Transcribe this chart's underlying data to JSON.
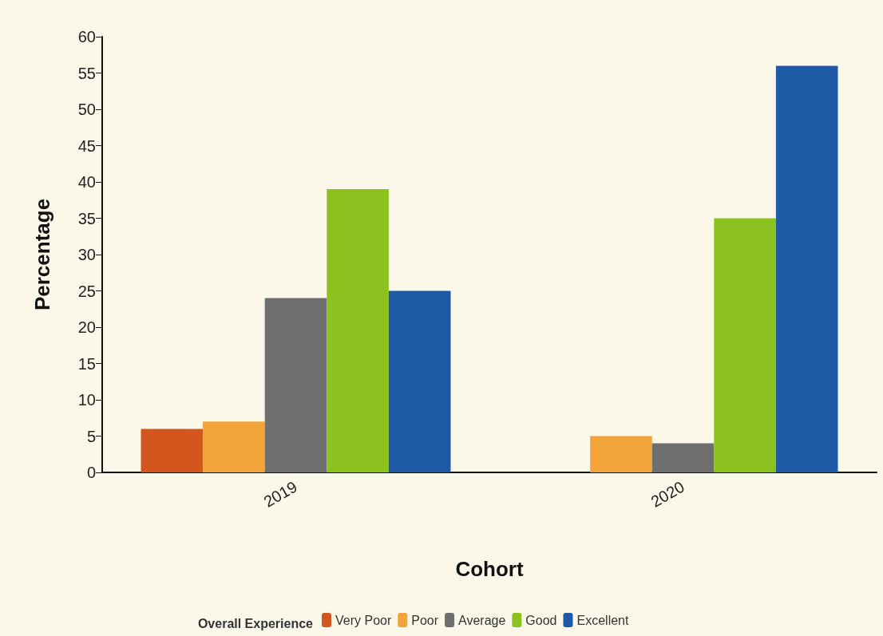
{
  "chart_data": {
    "type": "bar",
    "xlabel": "Cohort",
    "ylabel": "Percentage",
    "legend_title": "Overall Experience",
    "categories": [
      "2019",
      "2020"
    ],
    "series": [
      {
        "name": "Very Poor",
        "color": "#d4561f",
        "values": [
          6,
          null
        ]
      },
      {
        "name": "Poor",
        "color": "#f2a43a",
        "values": [
          7,
          5
        ]
      },
      {
        "name": "Average",
        "color": "#6f6f6f",
        "values": [
          24,
          4
        ]
      },
      {
        "name": "Good",
        "color": "#8cc21f",
        "values": [
          39,
          35
        ]
      },
      {
        "name": "Excellent",
        "color": "#1f5aa6",
        "values": [
          25,
          56
        ]
      }
    ],
    "ylim": [
      0,
      60
    ],
    "yticks": [
      0,
      5,
      10,
      15,
      20,
      25,
      30,
      35,
      40,
      45,
      50,
      55,
      60
    ],
    "grid": false,
    "legend": "bottom"
  }
}
